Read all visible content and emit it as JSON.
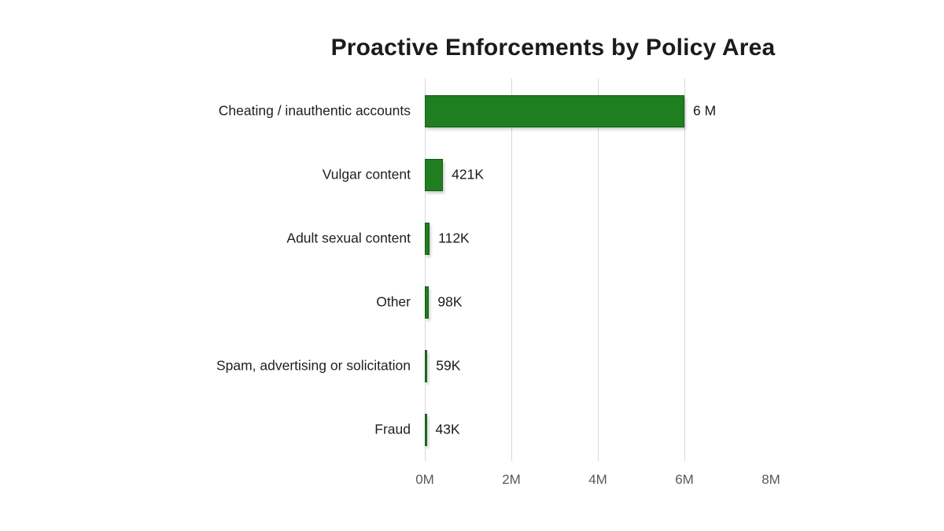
{
  "chart_data": {
    "type": "bar",
    "orientation": "horizontal",
    "title": "Proactive Enforcements by Policy Area",
    "categories": [
      "Cheating / inauthentic accounts",
      "Vulgar content",
      "Adult sexual content",
      "Other",
      "Spam, advertising or solicitation",
      "Fraud"
    ],
    "values": [
      6000000,
      421000,
      112000,
      98000,
      59000,
      43000
    ],
    "value_labels": [
      "6 M",
      "421K",
      "112K",
      "98K",
      "59K",
      "43K"
    ],
    "xlabel": "",
    "ylabel": "",
    "xlim": [
      0,
      8000000
    ],
    "x_ticks": [
      {
        "label": "0M",
        "value": 0,
        "gridline": true
      },
      {
        "label": "2M",
        "value": 2000000,
        "gridline": true
      },
      {
        "label": "4M",
        "value": 4000000,
        "gridline": true
      },
      {
        "label": "6M",
        "value": 6000000,
        "gridline": true
      },
      {
        "label": "8M",
        "value": 8000000,
        "gridline": false
      }
    ],
    "legend": "none",
    "grid": "vertical-gridlines",
    "colors": {
      "bar_fill": "#1f7e20",
      "bar_border": "#145c16",
      "gridline": "#d9d9d9",
      "title_text": "#1b1b1b",
      "category_text": "#1f1f1f",
      "value_text": "#1a1a1a",
      "tick_text": "#595959",
      "background": "#ffffff"
    }
  }
}
